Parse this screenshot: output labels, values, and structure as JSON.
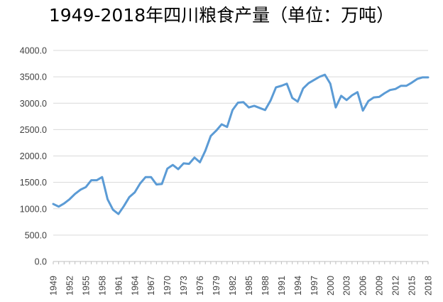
{
  "chart_data": {
    "type": "line",
    "title": "1949-2018年四川粮食产量（单位：万吨）",
    "xlabel": "",
    "ylabel": "",
    "ylim": [
      0,
      4000
    ],
    "yticks": [
      "0.0",
      "500.0",
      "1000.0",
      "1500.0",
      "2000.0",
      "2500.0",
      "3000.0",
      "3500.0",
      "4000.0"
    ],
    "x_tick_labels": [
      "1949",
      "1952",
      "1955",
      "1958",
      "1961",
      "1964",
      "1967",
      "1970",
      "1973",
      "1976",
      "1979",
      "1982",
      "1985",
      "1988",
      "1991",
      "1994",
      "1997",
      "2000",
      "2003",
      "2006",
      "2009",
      "2012",
      "2015",
      "2018"
    ],
    "grid": true,
    "legend": "none",
    "line_color": "#5b9bd5",
    "series": [
      {
        "x": [
          1949,
          1950,
          1951,
          1952,
          1953,
          1954,
          1955,
          1956,
          1957,
          1958,
          1959,
          1960,
          1961,
          1962,
          1963,
          1964,
          1965,
          1966,
          1967,
          1968,
          1969,
          1970,
          1971,
          1972,
          1973,
          1974,
          1975,
          1976,
          1977,
          1978,
          1979,
          1980,
          1981,
          1982,
          1983,
          1984,
          1985,
          1986,
          1987,
          1988,
          1989,
          1990,
          1991,
          1992,
          1993,
          1994,
          1995,
          1996,
          1997,
          1998,
          1999,
          2000,
          2001,
          2002,
          2003,
          2004,
          2005,
          2006,
          2007,
          2008,
          2009,
          2010,
          2011,
          2012,
          2013,
          2014,
          2015,
          2016,
          2017,
          2018
        ],
        "values": [
          1090,
          1040,
          1100,
          1180,
          1280,
          1360,
          1410,
          1540,
          1540,
          1600,
          1180,
          980,
          900,
          1050,
          1220,
          1310,
          1480,
          1600,
          1600,
          1460,
          1470,
          1760,
          1830,
          1750,
          1860,
          1850,
          1970,
          1880,
          2100,
          2380,
          2480,
          2600,
          2550,
          2870,
          3010,
          3020,
          2920,
          2950,
          2910,
          2870,
          3050,
          3300,
          3330,
          3370,
          3100,
          3030,
          3280,
          3380,
          3440,
          3500,
          3540,
          3370,
          2920,
          3140,
          3060,
          3150,
          3210,
          2860,
          3040,
          3110,
          3120,
          3190,
          3250,
          3270,
          3330,
          3330,
          3390,
          3460,
          3490,
          3490
        ]
      }
    ]
  }
}
